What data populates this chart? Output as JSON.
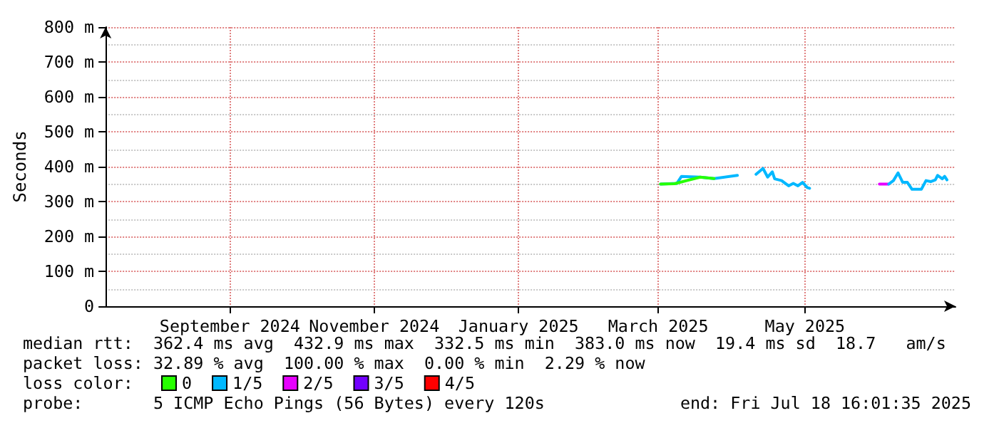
{
  "chart_data": {
    "type": "line",
    "ylabel": "Seconds",
    "legend_title": "loss color:",
    "xlim": [
      "2024-07-18T16:01",
      "2025-07-18T16:01"
    ],
    "xticks": [
      {
        "value": "2024-09-10",
        "label": "September 2024"
      },
      {
        "value": "2024-11-11",
        "label": "November 2024"
      },
      {
        "value": "2025-01-12",
        "label": "January 2025"
      },
      {
        "value": "2025-03-13",
        "label": "March 2025"
      },
      {
        "value": "2025-05-15",
        "label": "May 2025"
      }
    ],
    "ylim": [
      0,
      800
    ],
    "yticks": [
      0,
      {
        "value": 100,
        "label": "100 m"
      },
      {
        "value": 200,
        "label": "200 m"
      },
      {
        "value": 300,
        "label": "300 m"
      },
      {
        "value": 400,
        "label": "400 m"
      },
      {
        "value": 500,
        "label": "500 m"
      },
      {
        "value": 600,
        "label": "600 m"
      },
      {
        "value": 700,
        "label": "700 m"
      },
      {
        "value": 800,
        "label": "800 m"
      }
    ],
    "grid": true,
    "legend": "bottom",
    "marker": "none",
    "series": [
      {
        "name": "0",
        "color": "#26ff00",
        "x": [
          "2025-03-14",
          "2025-03-20",
          "2025-03-31",
          "2025-04-06"
        ],
        "values": [
          350,
          351,
          370,
          366
        ]
      },
      {
        "name": "1/5",
        "color": "#00b8ff",
        "x": [
          "2025-03-14",
          "2025-03-21",
          "2025-03-23",
          "2025-03-31",
          "2025-04-06",
          "2025-04-16",
          "2025-04-20",
          "2025-04-24",
          "2025-04-27",
          "2025-04-29",
          "2025-05-01",
          "2025-05-02",
          "2025-05-05",
          "2025-05-06",
          "2025-05-08",
          "2025-05-10",
          "2025-05-12",
          "2025-05-14",
          "2025-05-16",
          "2025-05-17",
          "2025-06-01",
          "2025-06-20",
          "2025-06-22",
          "2025-06-24",
          "2025-06-26",
          "2025-06-28",
          "2025-06-30",
          "2025-07-04",
          "2025-07-06",
          "2025-07-08",
          "2025-07-10",
          "2025-07-11",
          "2025-07-13",
          "2025-07-14",
          "2025-07-15"
        ],
        "values": [
          350,
          352,
          372,
          370,
          366,
          375,
          null,
          378,
          395,
          370,
          385,
          365,
          360,
          355,
          345,
          352,
          345,
          355,
          340,
          338,
          null,
          350,
          360,
          382,
          355,
          355,
          335,
          335,
          360,
          357,
          362,
          375,
          365,
          372,
          362
        ]
      },
      {
        "name": "2/5",
        "color": "#e600ff",
        "x": [
          "2025-06-16",
          "2025-06-20"
        ],
        "values": [
          350,
          350
        ]
      },
      {
        "name": "3/5",
        "color": "#7200ff"
      },
      {
        "name": "4/5",
        "color": "#ff0000"
      }
    ],
    "annotations": [
      "median rtt:  362.4 ms avg  432.9 ms max  332.5 ms min  383.0 ms now  19.4 ms sd  18.7   am/s",
      "packet loss: 32.89 % avg  100.00 % max  0.00 % min  2.29 % now",
      "probe:       5 ICMP Echo Pings (56 Bytes) every 120s",
      "end: Fri Jul 18 16:01:35 2025"
    ]
  }
}
